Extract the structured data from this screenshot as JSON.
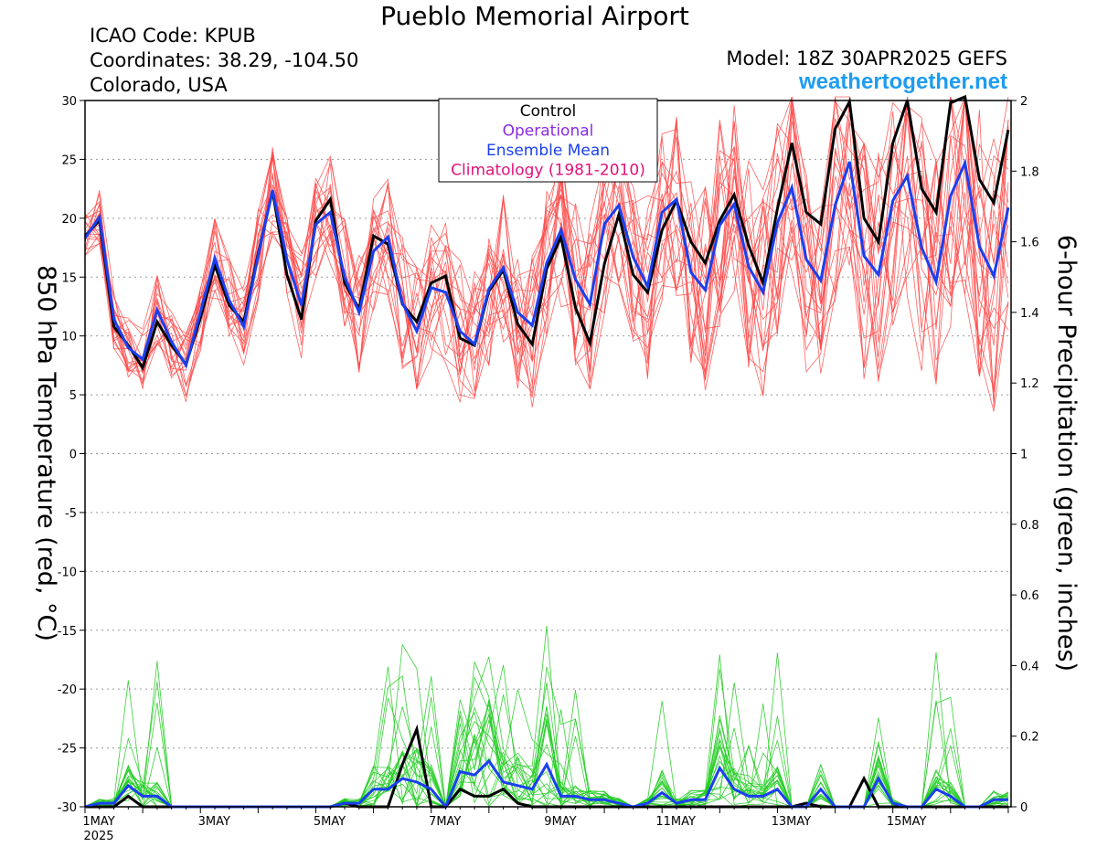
{
  "header": {
    "title": "Pueblo Memorial Airport",
    "icao": "ICAO Code: KPUB",
    "coordinates": "Coordinates: 38.29, -104.50",
    "region": "Colorado, USA",
    "model": "Model: 18Z 30APR2025 GEFS",
    "site": "weathertogether.net"
  },
  "chart_data": {
    "type": "line",
    "title": "Pueblo Memorial Airport",
    "ylabel": "850 hPa Temperature (red, °C)",
    "y2label": "6-hour Precipitation (green, inches)",
    "ylim": [
      -30,
      30
    ],
    "y2lim": [
      0,
      2
    ],
    "yticks": [
      "30",
      "25",
      "20",
      "15",
      "10",
      "5",
      "0",
      "-5",
      "-10",
      "-15",
      "-20",
      "-25",
      "-30"
    ],
    "y2ticks": [
      "2",
      "1.8",
      "1.6",
      "1.4",
      "1.2",
      "1",
      "0.8",
      "0.6",
      "0.4",
      "0.2",
      "0"
    ],
    "xticks": [
      "1MAY",
      "3MAY",
      "5MAY",
      "7MAY",
      "9MAY",
      "11MAY",
      "13MAY",
      "15MAY"
    ],
    "xyear": "2025",
    "x_step": "6 hours, starting 00Z 1MAY 2025",
    "legend": {
      "placement": "top-center",
      "entries": [
        {
          "label": "Control",
          "color": "#000000"
        },
        {
          "label": "Operational",
          "color": "#8a2be2"
        },
        {
          "label": "Ensemble Mean",
          "color": "#1a3ff0"
        },
        {
          "label": "Climatology (1981-2010)",
          "color": "#e0127a"
        }
      ]
    },
    "colors": {
      "members_temp": "#ff4848",
      "members_precip": "#22cc22",
      "control": "#000000",
      "mean": "#1a3ff0"
    },
    "grid": "horizontal dotted",
    "series": [
      {
        "name": "Control",
        "axis": "temperature",
        "values": [
          18.5,
          19.8,
          10.8,
          9.2,
          7.3,
          11.2,
          9.2,
          7.6,
          11.5,
          16.0,
          12.6,
          11.2,
          17.0,
          22.3,
          15.2,
          11.4,
          19.8,
          21.6,
          14.5,
          12.3,
          18.5,
          17.8,
          12.7,
          11.2,
          14.5,
          15.1,
          9.8,
          9.2,
          13.8,
          15.6,
          11.0,
          9.3,
          15.7,
          18.4,
          12.4,
          9.4,
          16.1,
          20.3,
          15.2,
          13.7,
          19.0,
          21.5,
          18.0,
          16.2,
          19.8,
          22.0,
          17.7,
          14.5,
          20.8,
          26.4,
          20.5,
          19.5,
          27.6,
          29.9,
          20.0,
          18.0,
          26.4,
          30.0,
          22.5,
          20.5,
          29.8,
          31.0,
          23.3,
          21.3,
          27.5
        ]
      },
      {
        "name": "Ensemble Mean",
        "axis": "temperature",
        "values": [
          18.3,
          20.1,
          11.4,
          9.0,
          8.0,
          12.2,
          9.5,
          7.5,
          12.0,
          16.6,
          13.0,
          10.8,
          16.8,
          22.4,
          16.5,
          12.6,
          19.5,
          20.5,
          15.0,
          12.0,
          17.2,
          18.4,
          12.8,
          10.4,
          14.1,
          13.7,
          10.4,
          9.3,
          14.0,
          15.8,
          12.0,
          10.9,
          16.2,
          19.0,
          14.8,
          12.7,
          19.5,
          21.1,
          16.7,
          14.2,
          20.5,
          21.6,
          15.4,
          13.9,
          19.4,
          21.2,
          15.9,
          13.7,
          19.6,
          22.6,
          16.5,
          14.7,
          21.1,
          24.8,
          16.8,
          15.2,
          21.5,
          23.6,
          17.5,
          14.6,
          21.9,
          24.7,
          17.6,
          15.1,
          20.9
        ]
      },
      {
        "name": "Control",
        "axis": "precipitation",
        "values": [
          0,
          0,
          0,
          0.03,
          0,
          0,
          0,
          0,
          0,
          0,
          0,
          0,
          0,
          0,
          0,
          0,
          0,
          0,
          0.01,
          0,
          0,
          0,
          0.12,
          0.22,
          0,
          0,
          0.05,
          0.03,
          0.03,
          0.05,
          0.01,
          0,
          0,
          0,
          0,
          0,
          0,
          0,
          0,
          0,
          0,
          0,
          0,
          0,
          0,
          0,
          0,
          0,
          0,
          0,
          0.01,
          0,
          0,
          0,
          0.08,
          0,
          0,
          0,
          0,
          0,
          0,
          0,
          0,
          0,
          0
        ]
      },
      {
        "name": "Ensemble Mean",
        "axis": "precipitation",
        "values": [
          0,
          0.01,
          0.01,
          0.06,
          0.03,
          0.03,
          0,
          0,
          0,
          0,
          0,
          0,
          0,
          0,
          0,
          0,
          0,
          0,
          0.01,
          0.01,
          0.05,
          0.05,
          0.08,
          0.07,
          0.05,
          0,
          0.1,
          0.09,
          0.13,
          0.07,
          0.06,
          0.05,
          0.12,
          0.03,
          0.03,
          0.02,
          0.02,
          0.01,
          0,
          0.01,
          0.04,
          0.01,
          0.02,
          0.02,
          0.11,
          0.05,
          0.03,
          0.03,
          0.05,
          0,
          0,
          0.05,
          0,
          0,
          0,
          0.08,
          0.01,
          0,
          0,
          0.05,
          0.03,
          0,
          0,
          0.02,
          0.02
        ]
      }
    ]
  }
}
